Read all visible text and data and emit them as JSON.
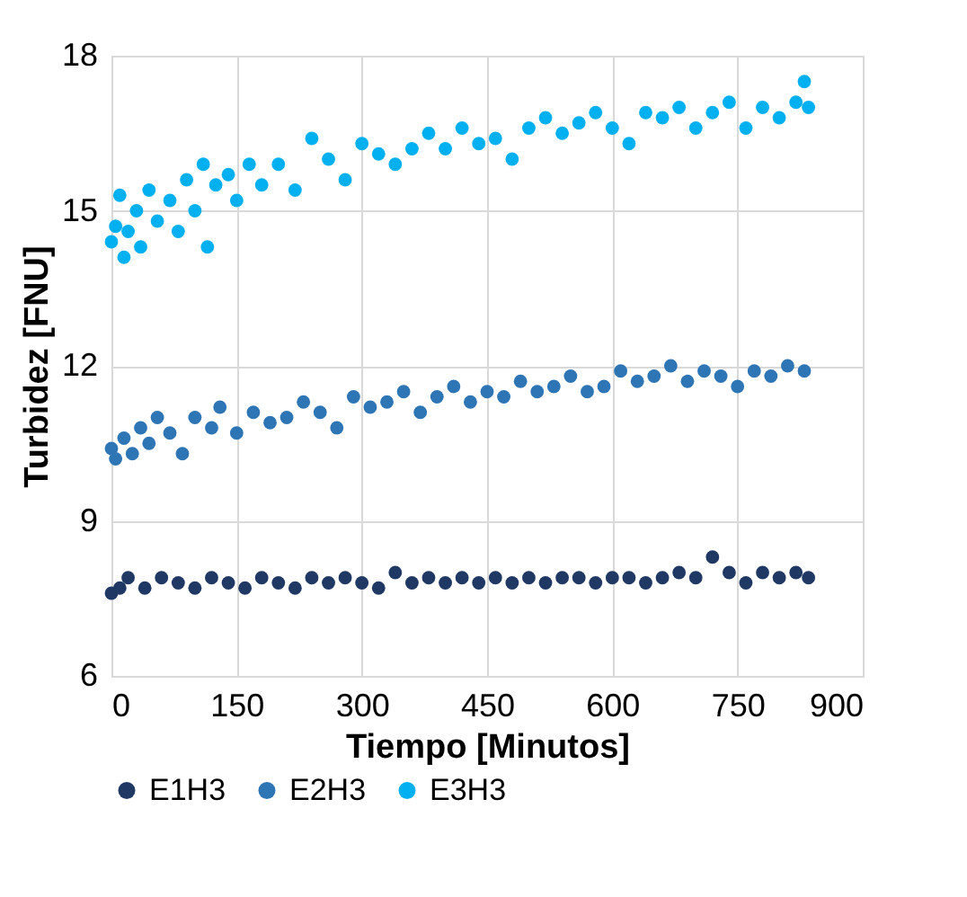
{
  "chart_data": {
    "type": "scatter",
    "xlabel": "Tiempo [Minutos]",
    "ylabel": "Turbidez [FNU]",
    "xlim": [
      0,
      900
    ],
    "xticks": [
      0,
      150,
      300,
      450,
      600,
      750,
      900
    ],
    "ylim": [
      6,
      18
    ],
    "yticks": [
      6,
      9,
      12,
      15,
      18
    ],
    "grid": true,
    "legend": "bottom",
    "marker": "circle",
    "series": [
      {
        "name": "E1H3",
        "color": "#1f3864",
        "x": [
          0,
          10,
          20,
          40,
          60,
          80,
          100,
          120,
          140,
          160,
          180,
          200,
          220,
          240,
          260,
          280,
          300,
          320,
          340,
          360,
          380,
          400,
          420,
          440,
          460,
          480,
          500,
          520,
          540,
          560,
          580,
          600,
          620,
          640,
          660,
          680,
          700,
          720,
          740,
          760,
          780,
          800,
          820,
          835
        ],
        "values": [
          7.6,
          7.7,
          7.9,
          7.7,
          7.9,
          7.8,
          7.7,
          7.9,
          7.8,
          7.7,
          7.9,
          7.8,
          7.7,
          7.9,
          7.8,
          7.9,
          7.8,
          7.7,
          8.0,
          7.8,
          7.9,
          7.8,
          7.9,
          7.8,
          7.9,
          7.8,
          7.9,
          7.8,
          7.9,
          7.9,
          7.8,
          7.9,
          7.9,
          7.8,
          7.9,
          8.0,
          7.9,
          8.3,
          8.0,
          7.8,
          8.0,
          7.9,
          8.0,
          7.9
        ]
      },
      {
        "name": "E2H3",
        "color": "#2e75b6",
        "x": [
          0,
          5,
          15,
          25,
          35,
          45,
          55,
          70,
          85,
          100,
          120,
          130,
          150,
          170,
          190,
          210,
          230,
          250,
          270,
          290,
          310,
          330,
          350,
          370,
          390,
          410,
          430,
          450,
          470,
          490,
          510,
          530,
          550,
          570,
          590,
          610,
          630,
          650,
          670,
          690,
          710,
          730,
          750,
          770,
          790,
          810,
          830
        ],
        "values": [
          10.4,
          10.2,
          10.6,
          10.3,
          10.8,
          10.5,
          11.0,
          10.7,
          10.3,
          11.0,
          10.8,
          11.2,
          10.7,
          11.1,
          10.9,
          11.0,
          11.3,
          11.1,
          10.8,
          11.4,
          11.2,
          11.3,
          11.5,
          11.1,
          11.4,
          11.6,
          11.3,
          11.5,
          11.4,
          11.7,
          11.5,
          11.6,
          11.8,
          11.5,
          11.6,
          11.9,
          11.7,
          11.8,
          12.0,
          11.7,
          11.9,
          11.8,
          11.6,
          11.9,
          11.8,
          12.0,
          11.9
        ]
      },
      {
        "name": "E3H3",
        "color": "#00b0f0",
        "x": [
          0,
          5,
          10,
          15,
          20,
          30,
          35,
          45,
          55,
          70,
          80,
          90,
          100,
          110,
          115,
          125,
          140,
          150,
          165,
          180,
          200,
          220,
          240,
          260,
          280,
          300,
          320,
          340,
          360,
          380,
          400,
          420,
          440,
          460,
          480,
          500,
          520,
          540,
          560,
          580,
          600,
          620,
          640,
          660,
          680,
          700,
          720,
          740,
          760,
          780,
          800,
          820,
          830,
          835
        ],
        "values": [
          14.4,
          14.7,
          15.3,
          14.1,
          14.6,
          15.0,
          14.3,
          15.4,
          14.8,
          15.2,
          14.6,
          15.6,
          15.0,
          15.9,
          14.3,
          15.5,
          15.7,
          15.2,
          15.9,
          15.5,
          15.9,
          15.4,
          16.4,
          16.0,
          15.6,
          16.3,
          16.1,
          15.9,
          16.2,
          16.5,
          16.2,
          16.6,
          16.3,
          16.4,
          16.0,
          16.6,
          16.8,
          16.5,
          16.7,
          16.9,
          16.6,
          16.3,
          16.9,
          16.8,
          17.0,
          16.6,
          16.9,
          17.1,
          16.6,
          17.0,
          16.8,
          17.1,
          17.5,
          17.0
        ]
      }
    ]
  }
}
